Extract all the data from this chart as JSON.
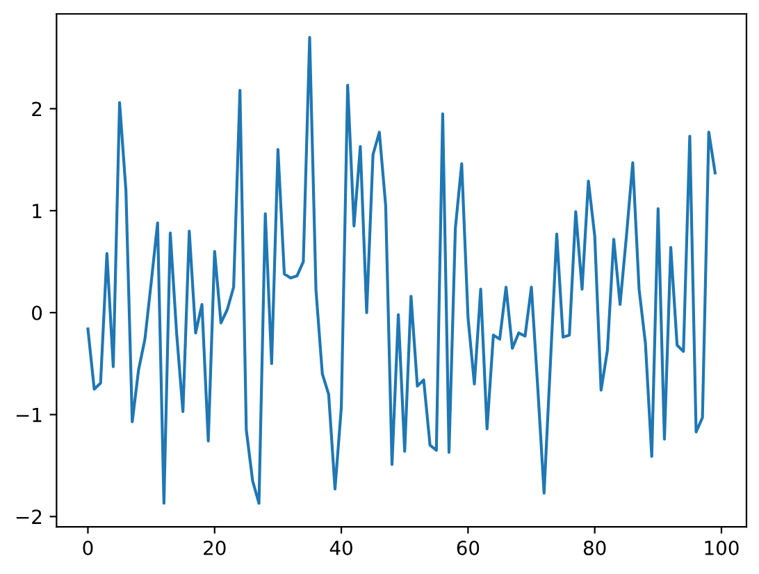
{
  "chart_data": {
    "type": "line",
    "x": [
      0,
      1,
      2,
      3,
      4,
      5,
      6,
      7,
      8,
      9,
      10,
      11,
      12,
      13,
      14,
      15,
      16,
      17,
      18,
      19,
      20,
      21,
      22,
      23,
      24,
      25,
      26,
      27,
      28,
      29,
      30,
      31,
      32,
      33,
      34,
      35,
      36,
      37,
      38,
      39,
      40,
      41,
      42,
      43,
      44,
      45,
      46,
      47,
      48,
      49,
      50,
      51,
      52,
      53,
      54,
      55,
      56,
      57,
      58,
      59,
      60,
      61,
      62,
      63,
      64,
      65,
      66,
      67,
      68,
      69,
      70,
      71,
      72,
      73,
      74,
      75,
      76,
      77,
      78,
      79,
      80,
      81,
      82,
      83,
      84,
      85,
      86,
      87,
      88,
      89,
      90,
      91,
      92,
      93,
      94,
      95,
      96,
      97,
      98,
      99
    ],
    "series": [
      {
        "color": "#1f77b4",
        "values": [
          -0.16,
          -0.75,
          -0.69,
          0.58,
          -0.53,
          2.06,
          1.2,
          -1.07,
          -0.56,
          -0.26,
          0.3,
          0.88,
          -1.87,
          0.78,
          -0.2,
          -0.97,
          0.8,
          -0.2,
          0.08,
          -1.26,
          0.6,
          -0.1,
          0.03,
          0.25,
          2.18,
          -1.15,
          -1.65,
          -1.87,
          0.97,
          -0.5,
          1.6,
          0.38,
          0.34,
          0.36,
          0.5,
          2.7,
          0.22,
          -0.6,
          -0.8,
          -1.73,
          -0.93,
          2.23,
          0.85,
          1.63,
          0.0,
          1.55,
          1.77,
          1.05,
          -1.49,
          -0.02,
          -1.36,
          0.16,
          -0.72,
          -0.66,
          -1.3,
          -1.35,
          1.95,
          -1.37,
          0.83,
          1.46,
          -0.05,
          -0.7,
          0.23,
          -1.14,
          -0.22,
          -0.26,
          0.25,
          -0.35,
          -0.2,
          -0.23,
          0.25,
          -0.73,
          -1.77,
          -0.5,
          0.77,
          -0.24,
          -0.22,
          0.99,
          0.23,
          1.29,
          0.75,
          -0.76,
          -0.37,
          0.72,
          0.08,
          0.75,
          1.47,
          0.23,
          -0.3,
          -1.41,
          1.02,
          -1.24,
          0.64,
          -0.32,
          -0.38,
          1.73,
          -1.17,
          -1.03,
          1.77,
          1.37
        ]
      }
    ],
    "xlim": [
      -4.95,
      103.95
    ],
    "ylim": [
      -2.1,
      2.93
    ],
    "xticks": [
      0,
      20,
      40,
      60,
      80,
      100
    ],
    "yticks": [
      {
        "value": -2,
        "label": "−2"
      },
      {
        "value": -1,
        "label": "−1"
      },
      0,
      1,
      2
    ],
    "grid": false,
    "marker": "none",
    "line_style": "solid"
  }
}
